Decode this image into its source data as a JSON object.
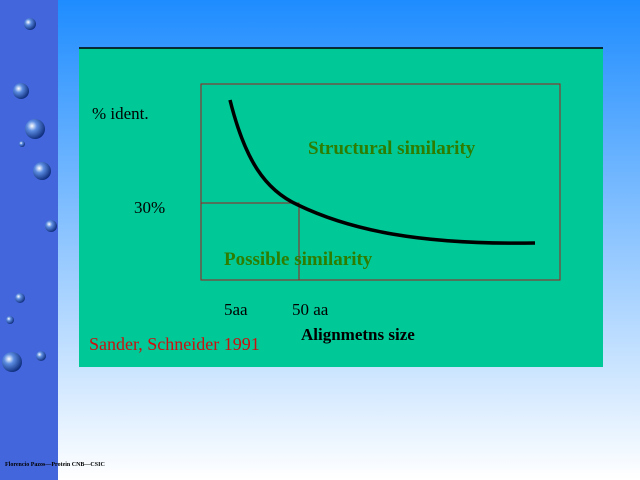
{
  "diagram": {
    "y_label": "% ident.",
    "upper_region": "Structural similarity",
    "threshold": "30%",
    "lower_region": "Possible similarity",
    "x_mark_1": "5aa",
    "x_mark_2": "50 aa",
    "x_label": "Alignmetns size",
    "citation": "Sander, Schneider 1991"
  },
  "footer": "Florencio Pazos—Protein CNB—CSIC"
}
